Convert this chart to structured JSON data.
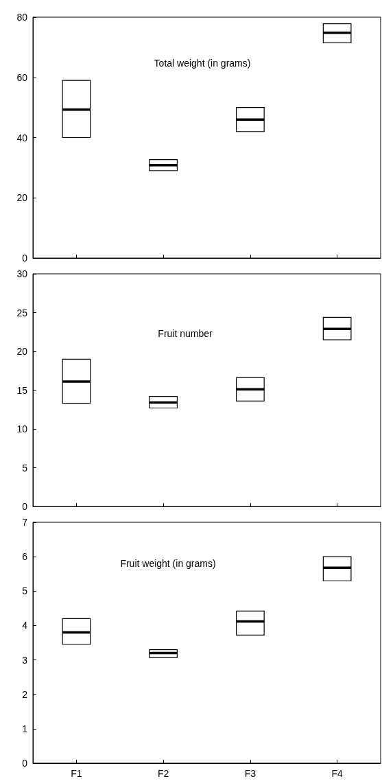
{
  "chart_data": [
    {
      "type": "box",
      "title": "Total weight (in grams)",
      "categories": [
        null,
        null,
        null,
        null
      ],
      "boxes": [
        {
          "low": 40,
          "q1": 40,
          "median": 49.3,
          "q3": 59,
          "high": 59
        },
        {
          "low": 29,
          "q1": 29,
          "median": 30.8,
          "q3": 32.7,
          "high": 32.7
        },
        {
          "low": 42,
          "q1": 42,
          "median": 46,
          "q3": 50,
          "high": 50
        },
        {
          "low": 71.5,
          "q1": 71.5,
          "median": 74.8,
          "q3": 77.8,
          "high": 77.8
        }
      ],
      "color": "#000000",
      "ylim": [
        0,
        80
      ],
      "yticks": [
        0,
        20,
        40,
        60,
        80
      ],
      "grid": false,
      "tick_labels": "y"
    },
    {
      "type": "box",
      "title": "Fruit number",
      "categories": [
        null,
        null,
        null,
        null
      ],
      "boxes": [
        {
          "low": 13.3,
          "q1": 13.3,
          "median": 16.1,
          "q3": 19,
          "high": 19
        },
        {
          "low": 12.7,
          "q1": 12.7,
          "median": 13.4,
          "q3": 14.2,
          "high": 14.2
        },
        {
          "low": 13.6,
          "q1": 13.6,
          "median": 15.1,
          "q3": 16.6,
          "high": 16.6
        },
        {
          "low": 21.5,
          "q1": 21.5,
          "median": 22.9,
          "q3": 24.4,
          "high": 24.4
        }
      ],
      "color": "#000000",
      "ylim": [
        0,
        30
      ],
      "yticks": [
        0,
        5,
        10,
        15,
        20,
        25,
        30
      ],
      "grid": false,
      "tick_labels": "y"
    },
    {
      "type": "box",
      "title": "Fruit weight (in grams)",
      "categories": [
        "F1",
        "F2",
        "F3",
        "F4"
      ],
      "boxes": [
        {
          "low": 3.45,
          "q1": 3.45,
          "median": 3.8,
          "q3": 4.2,
          "high": 4.2
        },
        {
          "low": 3.07,
          "q1": 3.07,
          "median": 3.2,
          "q3": 3.3,
          "high": 3.3
        },
        {
          "low": 3.72,
          "q1": 3.72,
          "median": 4.12,
          "q3": 4.42,
          "high": 4.42
        },
        {
          "low": 5.3,
          "q1": 5.3,
          "median": 5.68,
          "q3": 6.0,
          "high": 6.0
        }
      ],
      "color": "#000000",
      "ylim": [
        0,
        7
      ],
      "yticks": [
        0,
        1,
        2,
        3,
        4,
        5,
        6,
        7
      ],
      "grid": false
    }
  ]
}
